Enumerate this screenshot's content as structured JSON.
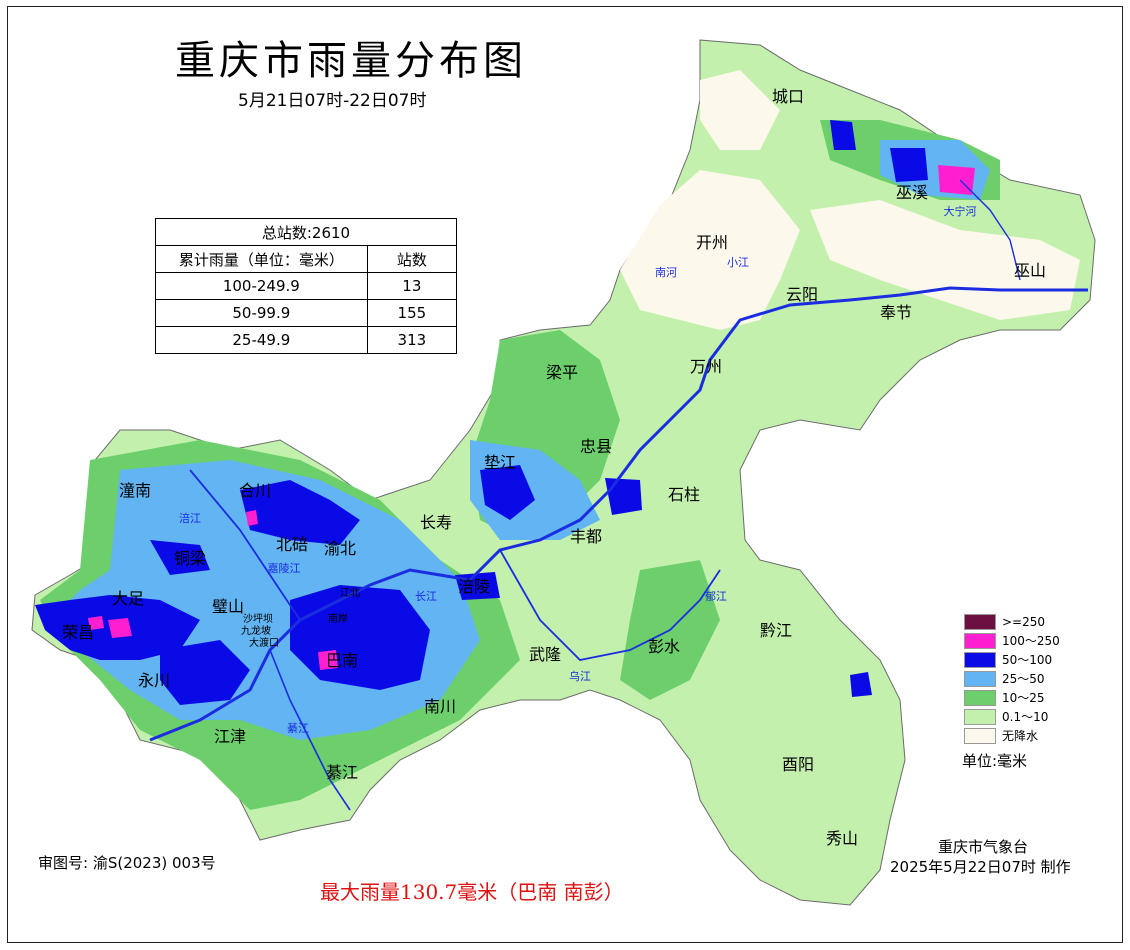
{
  "title": "重庆市雨量分布图",
  "subtitle": "5月21日07时-22日07时",
  "stats": {
    "total": "总站数:2610",
    "header_range": "累计雨量（单位：毫米）",
    "header_count": "站数",
    "rows": [
      {
        "range": "100-249.9",
        "count": "13"
      },
      {
        "range": "50-99.9",
        "count": "155"
      },
      {
        "range": "25-49.9",
        "count": "313"
      }
    ]
  },
  "legend": [
    {
      "label": ">=250",
      "color": "#6b1040"
    },
    {
      "label": "100～250",
      "color": "#ff1fd0"
    },
    {
      "label": "50～100",
      "color": "#0a0ae6"
    },
    {
      "label": "25～50",
      "color": "#62b4f2"
    },
    {
      "label": "10～25",
      "color": "#6ccf6c"
    },
    {
      "label": "0.1～10",
      "color": "#c3f0ad"
    },
    {
      "label": "无降水",
      "color": "#fdf8ec"
    }
  ],
  "unit": "单位:毫米",
  "approval": "审图号: 渝S(2023) 003号",
  "max_rain": "最大雨量130.7毫米（巴南 南彭）",
  "org": "重庆市气象台",
  "made": "2025年5月22日07时 制作",
  "districts": [
    "城口",
    "巫溪",
    "开州",
    "巫山",
    "云阳",
    "奉节",
    "万州",
    "梁平",
    "忠县",
    "垫江",
    "石柱",
    "长寿",
    "丰都",
    "涪陵",
    "武隆",
    "彭水",
    "黔江",
    "酉阳",
    "秀山",
    "南川",
    "綦江",
    "江津",
    "巴南",
    "永川",
    "荣昌",
    "大足",
    "铜梁",
    "璧山",
    "北碚",
    "渝北",
    "合川",
    "潼南",
    "沙坪坝",
    "九龙坡",
    "大渡口",
    "南岸",
    "江北"
  ],
  "rivers": [
    "长江",
    "嘉陵江",
    "涪江",
    "乌江",
    "綦江",
    "南河",
    "小江",
    "大宁河",
    "郁江"
  ]
}
